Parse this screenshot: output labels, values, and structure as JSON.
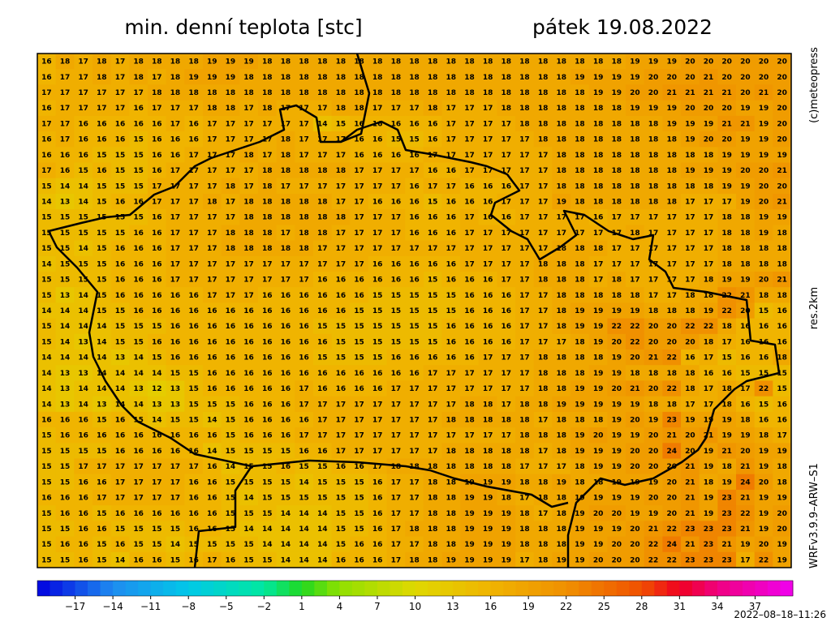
{
  "header": {
    "title": "min. denní teplota [stc]",
    "date": "pátek 19.08.2022"
  },
  "side": {
    "copyright": "(c)meteopress",
    "resolution": "res.2km",
    "model": "WRFv3.9.9–ARW–S1"
  },
  "timestamp": "2022–08–18–11:26",
  "grid": {
    "rows": [
      [
        16,
        18,
        17,
        18,
        17,
        18,
        18,
        18,
        18,
        19,
        19,
        19,
        18,
        18,
        18,
        18,
        18,
        18,
        18,
        18,
        18,
        18,
        18,
        18,
        18,
        18,
        18,
        18,
        18,
        18,
        18,
        18,
        19,
        19,
        19,
        20,
        20,
        20,
        20,
        20,
        20
      ],
      [
        16,
        17,
        17,
        18,
        17,
        18,
        17,
        18,
        19,
        19,
        19,
        18,
        18,
        18,
        18,
        18,
        18,
        18,
        18,
        18,
        18,
        18,
        18,
        18,
        18,
        18,
        18,
        18,
        18,
        19,
        19,
        19,
        19,
        20,
        20,
        20,
        21,
        20,
        20,
        20,
        20
      ],
      [
        17,
        17,
        17,
        17,
        17,
        17,
        18,
        18,
        18,
        18,
        18,
        18,
        18,
        18,
        18,
        18,
        18,
        18,
        18,
        18,
        18,
        18,
        18,
        18,
        18,
        18,
        18,
        18,
        18,
        18,
        19,
        19,
        20,
        20,
        21,
        21,
        21,
        21,
        20,
        21,
        20
      ],
      [
        16,
        17,
        17,
        17,
        17,
        16,
        17,
        17,
        17,
        18,
        18,
        17,
        18,
        17,
        17,
        17,
        18,
        18,
        17,
        17,
        17,
        18,
        17,
        17,
        17,
        18,
        18,
        18,
        18,
        18,
        18,
        18,
        19,
        19,
        19,
        20,
        20,
        20,
        19,
        19,
        20
      ],
      [
        17,
        17,
        16,
        16,
        16,
        16,
        16,
        17,
        16,
        17,
        17,
        17,
        17,
        17,
        17,
        14,
        15,
        16,
        16,
        16,
        16,
        16,
        17,
        17,
        17,
        17,
        18,
        18,
        18,
        18,
        18,
        18,
        18,
        18,
        19,
        19,
        19,
        21,
        21,
        19,
        20
      ],
      [
        16,
        17,
        16,
        16,
        16,
        15,
        16,
        16,
        16,
        17,
        17,
        17,
        17,
        18,
        17,
        17,
        17,
        16,
        16,
        15,
        15,
        16,
        17,
        17,
        17,
        17,
        17,
        18,
        18,
        18,
        18,
        18,
        18,
        18,
        18,
        19,
        20,
        20,
        19,
        19,
        20
      ],
      [
        16,
        16,
        16,
        15,
        15,
        15,
        16,
        16,
        17,
        17,
        17,
        18,
        17,
        18,
        17,
        17,
        17,
        16,
        16,
        16,
        16,
        17,
        17,
        17,
        17,
        17,
        17,
        17,
        18,
        18,
        18,
        18,
        18,
        18,
        18,
        18,
        18,
        19,
        19,
        19,
        19
      ],
      [
        17,
        16,
        15,
        16,
        15,
        15,
        16,
        17,
        17,
        17,
        17,
        17,
        18,
        18,
        18,
        18,
        18,
        17,
        17,
        17,
        17,
        16,
        16,
        17,
        17,
        17,
        17,
        17,
        18,
        18,
        18,
        18,
        18,
        18,
        18,
        19,
        19,
        19,
        20,
        20,
        21
      ],
      [
        15,
        14,
        14,
        15,
        15,
        15,
        17,
        17,
        17,
        17,
        18,
        17,
        18,
        17,
        17,
        17,
        17,
        17,
        17,
        17,
        16,
        17,
        17,
        16,
        16,
        16,
        17,
        17,
        18,
        18,
        18,
        18,
        18,
        18,
        18,
        18,
        18,
        19,
        19,
        20,
        20
      ],
      [
        14,
        13,
        14,
        15,
        16,
        16,
        17,
        17,
        17,
        18,
        17,
        18,
        18,
        18,
        18,
        18,
        17,
        17,
        16,
        16,
        16,
        15,
        16,
        16,
        16,
        17,
        17,
        17,
        19,
        18,
        18,
        18,
        18,
        18,
        18,
        17,
        17,
        17,
        19,
        20,
        21
      ],
      [
        15,
        15,
        15,
        15,
        15,
        15,
        16,
        17,
        17,
        17,
        17,
        18,
        18,
        18,
        18,
        18,
        18,
        17,
        17,
        17,
        16,
        16,
        16,
        17,
        16,
        16,
        17,
        17,
        17,
        17,
        16,
        17,
        17,
        17,
        17,
        17,
        17,
        18,
        18,
        19,
        19
      ],
      [
        15,
        15,
        15,
        15,
        15,
        16,
        16,
        17,
        17,
        17,
        18,
        18,
        18,
        17,
        18,
        18,
        17,
        17,
        17,
        17,
        16,
        16,
        16,
        17,
        17,
        17,
        17,
        17,
        17,
        17,
        17,
        17,
        18,
        17,
        17,
        17,
        17,
        18,
        18,
        19,
        18
      ],
      [
        15,
        15,
        14,
        15,
        16,
        16,
        16,
        17,
        17,
        17,
        18,
        18,
        18,
        18,
        18,
        17,
        17,
        17,
        17,
        17,
        17,
        17,
        17,
        17,
        17,
        17,
        17,
        17,
        18,
        18,
        18,
        17,
        17,
        17,
        17,
        17,
        17,
        18,
        18,
        18,
        18
      ],
      [
        14,
        15,
        15,
        15,
        16,
        16,
        16,
        17,
        17,
        17,
        17,
        17,
        17,
        17,
        17,
        17,
        17,
        17,
        16,
        16,
        16,
        16,
        16,
        17,
        17,
        17,
        17,
        18,
        18,
        18,
        17,
        17,
        17,
        17,
        17,
        17,
        17,
        18,
        18,
        18,
        18
      ],
      [
        15,
        15,
        15,
        15,
        16,
        16,
        16,
        17,
        17,
        17,
        17,
        17,
        17,
        17,
        17,
        16,
        16,
        16,
        16,
        16,
        16,
        15,
        16,
        16,
        16,
        17,
        17,
        18,
        18,
        18,
        17,
        18,
        17,
        17,
        17,
        17,
        18,
        19,
        19,
        20,
        21
      ],
      [
        15,
        13,
        14,
        15,
        16,
        16,
        16,
        16,
        16,
        17,
        17,
        17,
        16,
        16,
        16,
        16,
        16,
        16,
        15,
        15,
        15,
        15,
        15,
        16,
        16,
        16,
        17,
        17,
        18,
        18,
        18,
        18,
        18,
        17,
        17,
        18,
        18,
        22,
        21,
        18,
        18
      ],
      [
        14,
        14,
        14,
        15,
        15,
        16,
        16,
        16,
        16,
        16,
        16,
        16,
        16,
        16,
        16,
        16,
        16,
        15,
        15,
        15,
        15,
        15,
        15,
        16,
        16,
        16,
        17,
        17,
        18,
        19,
        19,
        19,
        19,
        18,
        18,
        18,
        19,
        22,
        20,
        15,
        16
      ],
      [
        15,
        14,
        14,
        14,
        15,
        15,
        15,
        16,
        16,
        16,
        16,
        16,
        16,
        16,
        16,
        15,
        15,
        15,
        15,
        15,
        15,
        15,
        16,
        16,
        16,
        16,
        17,
        17,
        18,
        19,
        19,
        22,
        22,
        20,
        20,
        22,
        22,
        18,
        16,
        16,
        16
      ],
      [
        15,
        14,
        13,
        14,
        15,
        15,
        16,
        16,
        16,
        16,
        16,
        16,
        16,
        16,
        16,
        16,
        15,
        15,
        15,
        15,
        15,
        15,
        16,
        16,
        16,
        16,
        17,
        17,
        17,
        18,
        19,
        20,
        22,
        20,
        20,
        20,
        18,
        17,
        16,
        16,
        16
      ],
      [
        14,
        14,
        14,
        14,
        13,
        14,
        15,
        16,
        16,
        16,
        16,
        16,
        16,
        16,
        16,
        15,
        15,
        15,
        15,
        16,
        16,
        16,
        16,
        16,
        17,
        17,
        17,
        18,
        18,
        18,
        18,
        19,
        20,
        21,
        22,
        16,
        17,
        15,
        16,
        16,
        18
      ],
      [
        14,
        13,
        13,
        14,
        14,
        14,
        14,
        15,
        15,
        16,
        16,
        16,
        16,
        16,
        16,
        16,
        16,
        16,
        16,
        16,
        16,
        17,
        17,
        17,
        17,
        17,
        17,
        18,
        18,
        18,
        19,
        19,
        18,
        18,
        18,
        18,
        16,
        16,
        15,
        15,
        15
      ],
      [
        14,
        13,
        14,
        14,
        14,
        13,
        12,
        13,
        15,
        16,
        16,
        16,
        16,
        16,
        17,
        16,
        16,
        16,
        16,
        17,
        17,
        17,
        17,
        17,
        17,
        17,
        17,
        18,
        18,
        19,
        19,
        20,
        21,
        20,
        22,
        18,
        17,
        18,
        17,
        22,
        15
      ],
      [
        14,
        13,
        14,
        13,
        14,
        14,
        13,
        13,
        15,
        15,
        15,
        16,
        16,
        16,
        17,
        17,
        17,
        17,
        17,
        17,
        17,
        17,
        17,
        18,
        18,
        17,
        18,
        18,
        19,
        19,
        19,
        19,
        19,
        18,
        18,
        17,
        17,
        18,
        16,
        15,
        16
      ],
      [
        16,
        16,
        16,
        15,
        16,
        15,
        14,
        15,
        15,
        14,
        15,
        16,
        16,
        16,
        16,
        17,
        17,
        17,
        17,
        17,
        17,
        17,
        18,
        18,
        18,
        18,
        18,
        17,
        18,
        18,
        18,
        19,
        20,
        19,
        23,
        19,
        19,
        19,
        18,
        16,
        16
      ],
      [
        15,
        16,
        16,
        16,
        16,
        16,
        16,
        16,
        16,
        16,
        15,
        16,
        16,
        16,
        17,
        17,
        17,
        17,
        17,
        17,
        17,
        17,
        17,
        17,
        17,
        17,
        18,
        18,
        18,
        19,
        20,
        19,
        19,
        20,
        21,
        20,
        21,
        19,
        19,
        18,
        17
      ],
      [
        15,
        15,
        15,
        15,
        16,
        16,
        16,
        16,
        16,
        14,
        15,
        15,
        15,
        15,
        16,
        16,
        17,
        17,
        17,
        17,
        17,
        17,
        18,
        18,
        18,
        18,
        18,
        17,
        18,
        19,
        19,
        19,
        20,
        20,
        24,
        20,
        19,
        21,
        20,
        19,
        19
      ],
      [
        15,
        15,
        17,
        17,
        17,
        17,
        17,
        17,
        17,
        16,
        14,
        15,
        15,
        16,
        15,
        15,
        16,
        16,
        17,
        18,
        18,
        18,
        18,
        18,
        18,
        18,
        17,
        17,
        17,
        18,
        19,
        19,
        20,
        20,
        20,
        21,
        19,
        18,
        21,
        19,
        18
      ],
      [
        15,
        15,
        16,
        16,
        17,
        17,
        17,
        17,
        16,
        16,
        15,
        15,
        15,
        15,
        14,
        15,
        15,
        15,
        16,
        17,
        17,
        18,
        18,
        19,
        19,
        19,
        18,
        18,
        19,
        18,
        18,
        19,
        19,
        19,
        20,
        21,
        18,
        19,
        24,
        20,
        18
      ],
      [
        16,
        16,
        16,
        17,
        17,
        17,
        17,
        17,
        16,
        16,
        15,
        14,
        15,
        15,
        15,
        15,
        15,
        15,
        16,
        17,
        17,
        18,
        18,
        19,
        19,
        18,
        17,
        18,
        18,
        19,
        19,
        19,
        19,
        20,
        20,
        21,
        19,
        23,
        21,
        19,
        19
      ],
      [
        15,
        16,
        16,
        15,
        16,
        16,
        16,
        16,
        16,
        16,
        15,
        15,
        15,
        14,
        14,
        14,
        15,
        15,
        16,
        17,
        17,
        18,
        18,
        19,
        19,
        19,
        18,
        17,
        18,
        19,
        20,
        20,
        19,
        19,
        20,
        21,
        19,
        23,
        22,
        19,
        20
      ],
      [
        15,
        15,
        16,
        16,
        15,
        15,
        15,
        15,
        16,
        16,
        15,
        14,
        14,
        14,
        14,
        14,
        15,
        15,
        16,
        17,
        18,
        18,
        18,
        19,
        19,
        19,
        18,
        18,
        18,
        19,
        19,
        19,
        20,
        21,
        22,
        23,
        23,
        23,
        21,
        19,
        20
      ],
      [
        15,
        16,
        16,
        15,
        16,
        15,
        15,
        14,
        15,
        15,
        15,
        15,
        14,
        14,
        14,
        14,
        15,
        16,
        16,
        17,
        17,
        18,
        18,
        19,
        19,
        19,
        18,
        18,
        18,
        19,
        19,
        20,
        20,
        22,
        24,
        21,
        23,
        21,
        19,
        20,
        19
      ],
      [
        15,
        15,
        16,
        15,
        14,
        16,
        16,
        15,
        16,
        17,
        16,
        15,
        15,
        14,
        14,
        14,
        16,
        16,
        16,
        17,
        18,
        18,
        19,
        19,
        19,
        19,
        17,
        18,
        19,
        19,
        20,
        20,
        20,
        22,
        22,
        23,
        23,
        23,
        17,
        22,
        19
      ]
    ]
  },
  "colorbar": {
    "range": [
      -20,
      40
    ],
    "ticks": [
      {
        "value": -17,
        "label": "−17"
      },
      {
        "value": -14,
        "label": "−14"
      },
      {
        "value": -11,
        "label": "−11"
      },
      {
        "value": -8,
        "label": "−8"
      },
      {
        "value": -5,
        "label": "−5"
      },
      {
        "value": -2,
        "label": "−2"
      },
      1,
      4,
      7,
      10,
      13,
      16,
      19,
      22,
      25,
      28,
      31,
      34,
      37
    ],
    "stops": [
      {
        "value": -20,
        "color": "#0000e0"
      },
      {
        "value": -14,
        "color": "#1e8cf0"
      },
      {
        "value": -8,
        "color": "#00c8e8"
      },
      {
        "value": -2,
        "color": "#00e8a0"
      },
      {
        "value": 1,
        "color": "#20d820"
      },
      {
        "value": 4,
        "color": "#90e000"
      },
      {
        "value": 10,
        "color": "#e0d800"
      },
      {
        "value": 16,
        "color": "#f0b400"
      },
      {
        "value": 22,
        "color": "#f09000"
      },
      {
        "value": 28,
        "color": "#f05000"
      },
      {
        "value": 31,
        "color": "#f00020"
      },
      {
        "value": 34,
        "color": "#f00080"
      },
      {
        "value": 40,
        "color": "#f000f0"
      }
    ]
  }
}
